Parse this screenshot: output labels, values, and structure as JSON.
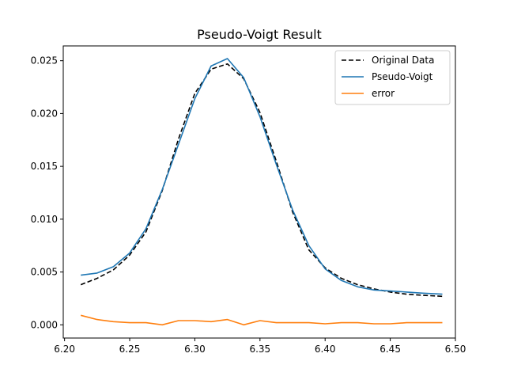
{
  "chart_data": {
    "type": "line",
    "title": "Pseudo-Voigt Result",
    "xlabel": "",
    "ylabel": "",
    "xlim": [
      6.199,
      6.5
    ],
    "ylim": [
      -0.00125,
      0.0264
    ],
    "xticks": [
      "6.20",
      "6.25",
      "6.30",
      "6.35",
      "6.40",
      "6.45",
      "6.50"
    ],
    "xtick_values": [
      6.2,
      6.25,
      6.3,
      6.35,
      6.4,
      6.45,
      6.5
    ],
    "yticks": [
      "0.000",
      "0.005",
      "0.010",
      "0.015",
      "0.020",
      "0.025"
    ],
    "ytick_values": [
      0.0,
      0.005,
      0.01,
      0.015,
      0.02,
      0.025
    ],
    "legend_position": "top-right",
    "grid": false,
    "x": [
      6.2125,
      6.225,
      6.2375,
      6.25,
      6.2625,
      6.275,
      6.2875,
      6.3,
      6.3125,
      6.325,
      6.3375,
      6.35,
      6.3625,
      6.375,
      6.3875,
      6.4,
      6.4125,
      6.425,
      6.4375,
      6.45,
      6.4625,
      6.475,
      6.49
    ],
    "series": [
      {
        "name": "Original Data",
        "color": "#000000",
        "dash": "dashed",
        "values": [
          0.0038,
          0.0044,
          0.0052,
          0.0066,
          0.0088,
          0.0127,
          0.0176,
          0.0219,
          0.0242,
          0.0247,
          0.0233,
          0.0201,
          0.0155,
          0.0107,
          0.0071,
          0.0054,
          0.0044,
          0.0038,
          0.0034,
          0.0031,
          0.0029,
          0.0028,
          0.0027
        ]
      },
      {
        "name": "Pseudo-Voigt",
        "color": "#1f77b4",
        "dash": "solid",
        "values": [
          0.0047,
          0.0049,
          0.0055,
          0.0068,
          0.0091,
          0.0128,
          0.0171,
          0.0214,
          0.0245,
          0.0252,
          0.0234,
          0.0197,
          0.0152,
          0.0109,
          0.0075,
          0.0053,
          0.0042,
          0.0036,
          0.0033,
          0.0032,
          0.0031,
          0.003,
          0.0029
        ]
      },
      {
        "name": "error",
        "color": "#ff7f0e",
        "dash": "solid",
        "values": [
          0.0009,
          0.0005,
          0.0003,
          0.0002,
          0.0002,
          0.0,
          0.0004,
          0.0004,
          0.0003,
          0.0005,
          0.0,
          0.0004,
          0.0002,
          0.0002,
          0.0002,
          0.0001,
          0.0002,
          0.0002,
          0.0001,
          0.0001,
          0.0002,
          0.0002,
          0.0002
        ]
      }
    ]
  }
}
